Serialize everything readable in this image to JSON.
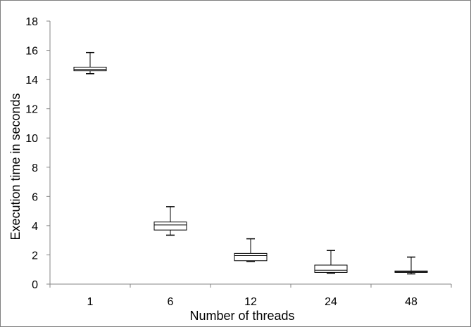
{
  "chart_data": {
    "type": "box",
    "title": "",
    "xlabel": "Number of threads",
    "ylabel": "Execution time in seconds",
    "categories": [
      "1",
      "6",
      "12",
      "24",
      "48"
    ],
    "boxes": [
      {
        "category": "1",
        "min": 14.4,
        "q1": 14.6,
        "median": 14.7,
        "q3": 14.85,
        "max": 15.85
      },
      {
        "category": "6",
        "min": 3.35,
        "q1": 3.7,
        "median": 4.05,
        "q3": 4.25,
        "max": 5.3
      },
      {
        "category": "12",
        "min": 1.55,
        "q1": 1.6,
        "median": 1.95,
        "q3": 2.1,
        "max": 3.1
      },
      {
        "category": "24",
        "min": 0.75,
        "q1": 0.8,
        "median": 0.95,
        "q3": 1.3,
        "max": 2.3
      },
      {
        "category": "48",
        "min": 0.7,
        "q1": 0.8,
        "median": 0.85,
        "q3": 0.9,
        "max": 1.85
      }
    ],
    "ylim": [
      0,
      18
    ],
    "yticks": [
      0,
      2,
      4,
      6,
      8,
      10,
      12,
      14,
      16,
      18
    ],
    "grid": false,
    "legend": "none",
    "colors": {
      "box_fill": "#ffffff",
      "box_stroke": "#000000",
      "axis": "#868686",
      "frame": "#7f7f7f"
    }
  }
}
